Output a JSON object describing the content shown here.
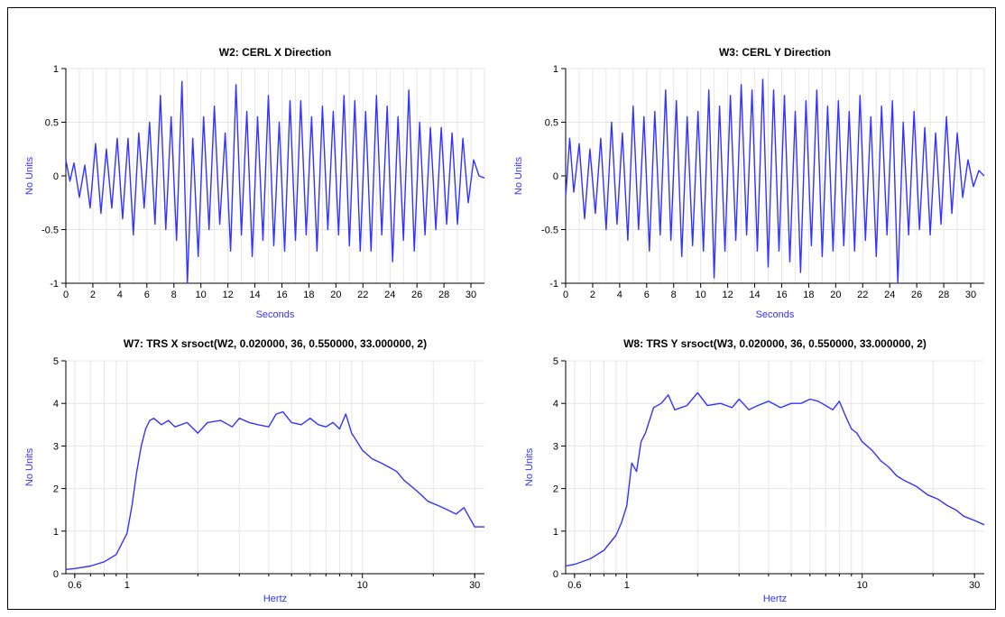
{
  "colors": {
    "series": "#3333ff",
    "axis_label": "#3333ff",
    "grid": "#e6e6e6"
  },
  "chart_data": [
    {
      "type": "line",
      "title": "W2: CERL X Direction",
      "xlabel": "Seconds",
      "ylabel": "No Units",
      "xlim": [
        0,
        31
      ],
      "ylim": [
        -1,
        1
      ],
      "x_scale": "linear",
      "xticks": [
        0,
        2,
        4,
        6,
        8,
        10,
        12,
        14,
        16,
        18,
        20,
        22,
        24,
        26,
        28,
        30
      ],
      "yticks": [
        -1,
        -0.5,
        0,
        0.5,
        1
      ],
      "grid": true,
      "series": [
        {
          "x": [
            0,
            0.3,
            0.6,
            1.0,
            1.4,
            1.8,
            2.2,
            2.6,
            3.0,
            3.4,
            3.8,
            4.2,
            4.6,
            5.0,
            5.4,
            5.8,
            6.2,
            6.6,
            7.0,
            7.4,
            7.8,
            8.2,
            8.6,
            9.0,
            9.4,
            9.8,
            10.2,
            10.6,
            11.0,
            11.4,
            11.8,
            12.2,
            12.6,
            13.0,
            13.4,
            13.8,
            14.2,
            14.6,
            15.0,
            15.4,
            15.8,
            16.2,
            16.6,
            17.0,
            17.4,
            17.8,
            18.2,
            18.6,
            19.0,
            19.4,
            19.8,
            20.2,
            20.6,
            21.0,
            21.4,
            21.8,
            22.2,
            22.6,
            23.0,
            23.4,
            23.8,
            24.2,
            24.6,
            25.0,
            25.4,
            25.8,
            26.2,
            26.6,
            27.0,
            27.4,
            27.8,
            28.2,
            28.6,
            29.0,
            29.4,
            29.8,
            30.2,
            30.6,
            31.0
          ],
          "y": [
            0.15,
            -0.05,
            0.12,
            -0.2,
            0.1,
            -0.3,
            0.3,
            -0.35,
            0.25,
            -0.3,
            0.35,
            -0.4,
            0.35,
            -0.55,
            0.4,
            -0.3,
            0.5,
            -0.45,
            0.75,
            -0.5,
            0.55,
            -0.6,
            0.88,
            -1.0,
            0.35,
            -0.75,
            0.55,
            -0.5,
            0.65,
            -0.45,
            0.4,
            -0.7,
            0.85,
            -0.55,
            0.6,
            -0.75,
            0.55,
            -0.6,
            0.75,
            -0.65,
            0.5,
            -0.7,
            0.7,
            -0.6,
            0.7,
            -0.55,
            0.55,
            -0.7,
            0.65,
            -0.5,
            0.6,
            -0.55,
            0.75,
            -0.65,
            0.7,
            -0.7,
            0.6,
            -0.7,
            0.75,
            -0.55,
            0.65,
            -0.8,
            0.55,
            -0.6,
            0.8,
            -0.7,
            0.5,
            -0.55,
            0.45,
            -0.5,
            0.45,
            -0.45,
            0.4,
            -0.45,
            0.35,
            -0.25,
            0.15,
            0.0,
            -0.02
          ]
        }
      ]
    },
    {
      "type": "line",
      "title": "W3: CERL Y Direction",
      "xlabel": "Seconds",
      "ylabel": "No Units",
      "xlim": [
        0,
        31
      ],
      "ylim": [
        -1,
        1
      ],
      "x_scale": "linear",
      "xticks": [
        0,
        2,
        4,
        6,
        8,
        10,
        12,
        14,
        16,
        18,
        20,
        22,
        24,
        26,
        28,
        30
      ],
      "yticks": [
        -1,
        -0.5,
        0,
        0.5,
        1
      ],
      "grid": true,
      "series": [
        {
          "x": [
            0,
            0.3,
            0.6,
            1.0,
            1.4,
            1.8,
            2.2,
            2.6,
            3.0,
            3.4,
            3.8,
            4.2,
            4.6,
            5.0,
            5.4,
            5.8,
            6.2,
            6.6,
            7.0,
            7.4,
            7.8,
            8.2,
            8.6,
            9.0,
            9.4,
            9.8,
            10.2,
            10.6,
            11.0,
            11.4,
            11.8,
            12.2,
            12.6,
            13.0,
            13.4,
            13.8,
            14.2,
            14.6,
            15.0,
            15.4,
            15.8,
            16.2,
            16.6,
            17.0,
            17.4,
            17.8,
            18.2,
            18.6,
            19.0,
            19.4,
            19.8,
            20.2,
            20.6,
            21.0,
            21.4,
            21.8,
            22.2,
            22.6,
            23.0,
            23.4,
            23.8,
            24.2,
            24.6,
            25.0,
            25.4,
            25.8,
            26.2,
            26.6,
            27.0,
            27.4,
            27.8,
            28.2,
            28.6,
            29.0,
            29.4,
            29.8,
            30.2,
            30.6,
            31.0
          ],
          "y": [
            -0.2,
            0.35,
            -0.15,
            0.3,
            -0.4,
            0.25,
            -0.35,
            0.35,
            -0.5,
            0.5,
            -0.45,
            0.4,
            -0.6,
            0.65,
            -0.5,
            0.55,
            -0.7,
            0.6,
            -0.55,
            0.8,
            -0.6,
            0.7,
            -0.75,
            0.55,
            -0.65,
            0.6,
            -0.7,
            0.8,
            -0.95,
            0.65,
            -0.7,
            0.75,
            -0.6,
            0.85,
            -0.55,
            0.8,
            -0.7,
            0.9,
            -0.85,
            0.8,
            -0.7,
            0.75,
            -0.8,
            0.6,
            -0.9,
            0.7,
            -0.65,
            0.8,
            -0.75,
            0.65,
            -0.7,
            0.7,
            -0.65,
            0.6,
            -0.7,
            0.75,
            -0.6,
            0.55,
            -0.75,
            0.65,
            -0.55,
            0.7,
            -1.0,
            0.5,
            -0.55,
            0.6,
            -0.5,
            0.45,
            -0.55,
            0.4,
            -0.45,
            0.55,
            -0.35,
            0.4,
            -0.2,
            0.15,
            -0.1,
            0.05,
            0.0
          ]
        }
      ]
    },
    {
      "type": "line",
      "title": "W7: TRS X srsoct(W2, 0.020000, 36, 0.550000, 33.000000, 2)",
      "xlabel": "Hertz",
      "ylabel": "No Units",
      "xlim": [
        0.55,
        33
      ],
      "ylim": [
        0,
        5
      ],
      "x_scale": "log",
      "xticks": [
        0.6,
        1,
        10,
        30
      ],
      "yticks": [
        0,
        1,
        2,
        3,
        4,
        5
      ],
      "grid": true,
      "series": [
        {
          "x": [
            0.55,
            0.6,
            0.7,
            0.8,
            0.9,
            1.0,
            1.05,
            1.1,
            1.15,
            1.2,
            1.25,
            1.3,
            1.4,
            1.5,
            1.6,
            1.8,
            2.0,
            2.2,
            2.5,
            2.8,
            3.0,
            3.3,
            3.6,
            4.0,
            4.3,
            4.6,
            5.0,
            5.5,
            6.0,
            6.5,
            7.0,
            7.5,
            8.0,
            8.5,
            9.0,
            9.5,
            10,
            11,
            12,
            13,
            14,
            15,
            17,
            19,
            21,
            23,
            25,
            27,
            30,
            33
          ],
          "y": [
            0.1,
            0.12,
            0.18,
            0.28,
            0.45,
            0.95,
            1.6,
            2.4,
            3.0,
            3.4,
            3.6,
            3.65,
            3.5,
            3.6,
            3.45,
            3.55,
            3.3,
            3.55,
            3.6,
            3.45,
            3.65,
            3.55,
            3.5,
            3.45,
            3.75,
            3.8,
            3.55,
            3.5,
            3.65,
            3.5,
            3.45,
            3.55,
            3.4,
            3.75,
            3.3,
            3.1,
            2.9,
            2.7,
            2.6,
            2.5,
            2.4,
            2.2,
            1.95,
            1.7,
            1.6,
            1.5,
            1.4,
            1.55,
            1.1,
            1.1
          ]
        }
      ]
    },
    {
      "type": "line",
      "title": "W8: TRS Y srsoct(W3, 0.020000, 36, 0.550000, 33.000000, 2)",
      "xlabel": "Hertz",
      "ylabel": "No Units",
      "xlim": [
        0.55,
        33
      ],
      "ylim": [
        0,
        5
      ],
      "x_scale": "log",
      "xticks": [
        0.6,
        1,
        10,
        30
      ],
      "yticks": [
        0,
        1,
        2,
        3,
        4,
        5
      ],
      "grid": true,
      "series": [
        {
          "x": [
            0.55,
            0.6,
            0.7,
            0.8,
            0.9,
            0.95,
            1.0,
            1.05,
            1.1,
            1.15,
            1.2,
            1.3,
            1.4,
            1.5,
            1.6,
            1.8,
            2.0,
            2.2,
            2.5,
            2.8,
            3.0,
            3.3,
            3.6,
            4.0,
            4.5,
            5.0,
            5.5,
            6.0,
            6.5,
            7.0,
            7.5,
            8.0,
            8.5,
            9.0,
            9.5,
            10,
            11,
            12,
            13,
            14,
            15,
            17,
            19,
            21,
            23,
            25,
            27,
            30,
            33
          ],
          "y": [
            0.18,
            0.22,
            0.35,
            0.55,
            0.9,
            1.2,
            1.6,
            2.6,
            2.4,
            3.1,
            3.3,
            3.9,
            4.0,
            4.2,
            3.85,
            3.95,
            4.25,
            3.95,
            4.0,
            3.9,
            4.1,
            3.85,
            3.95,
            4.05,
            3.9,
            4.0,
            4.0,
            4.1,
            4.05,
            3.95,
            3.85,
            4.05,
            3.7,
            3.4,
            3.3,
            3.1,
            2.9,
            2.65,
            2.5,
            2.3,
            2.2,
            2.05,
            1.85,
            1.75,
            1.6,
            1.5,
            1.35,
            1.25,
            1.15
          ]
        }
      ]
    }
  ]
}
